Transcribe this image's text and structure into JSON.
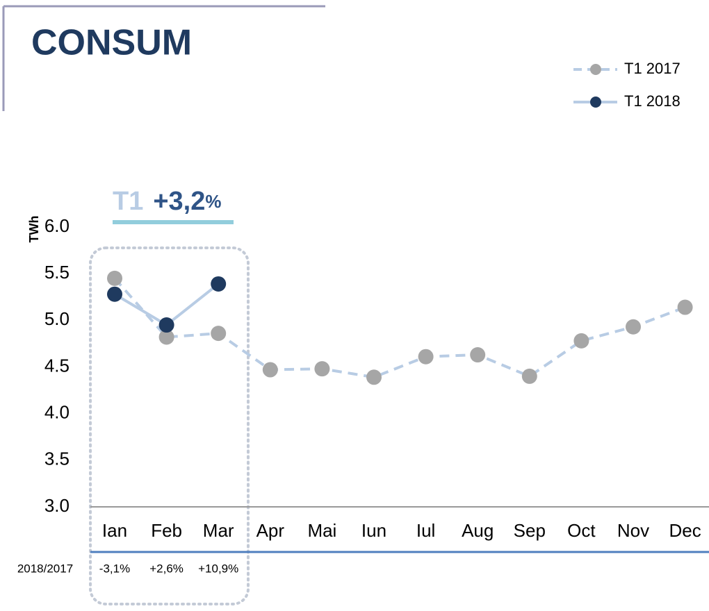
{
  "chart_data": {
    "type": "line",
    "title": "CONSUM",
    "y_label": "TWh",
    "annotation": {
      "period": "T1",
      "change": "+3,2",
      "unit": "%"
    },
    "categories": [
      "Ian",
      "Feb",
      "Mar",
      "Apr",
      "Mai",
      "Iun",
      "Iul",
      "Aug",
      "Sep",
      "Oct",
      "Nov",
      "Dec"
    ],
    "series": [
      {
        "name": "T1 2017",
        "color": "#a6a6a6",
        "line_color": "#b8cce4",
        "dashed": true,
        "values": [
          5.45,
          4.82,
          4.86,
          4.47,
          4.48,
          4.39,
          4.61,
          4.63,
          4.4,
          4.78,
          4.93,
          5.14
        ]
      },
      {
        "name": "T1 2018",
        "color": "#1f3a5f",
        "line_color": "#b8cce4",
        "dashed": false,
        "values": [
          5.28,
          4.95,
          5.39,
          null,
          null,
          null,
          null,
          null,
          null,
          null,
          null,
          null
        ]
      }
    ],
    "ylim": [
      3,
      6
    ],
    "yticks": [
      {
        "value": 3,
        "label": "3.0"
      },
      {
        "value": 3.5,
        "label": "3.5"
      },
      {
        "value": 4,
        "label": "4.0"
      },
      {
        "value": 4.5,
        "label": "4.5"
      },
      {
        "value": 5,
        "label": "5.0"
      },
      {
        "value": 5.5,
        "label": "5.5"
      },
      {
        "value": 6,
        "label": "6.0"
      }
    ],
    "growth_label": "2018/2017",
    "growth": [
      "-3,1%",
      "+2,6%",
      "+10,9%"
    ]
  }
}
